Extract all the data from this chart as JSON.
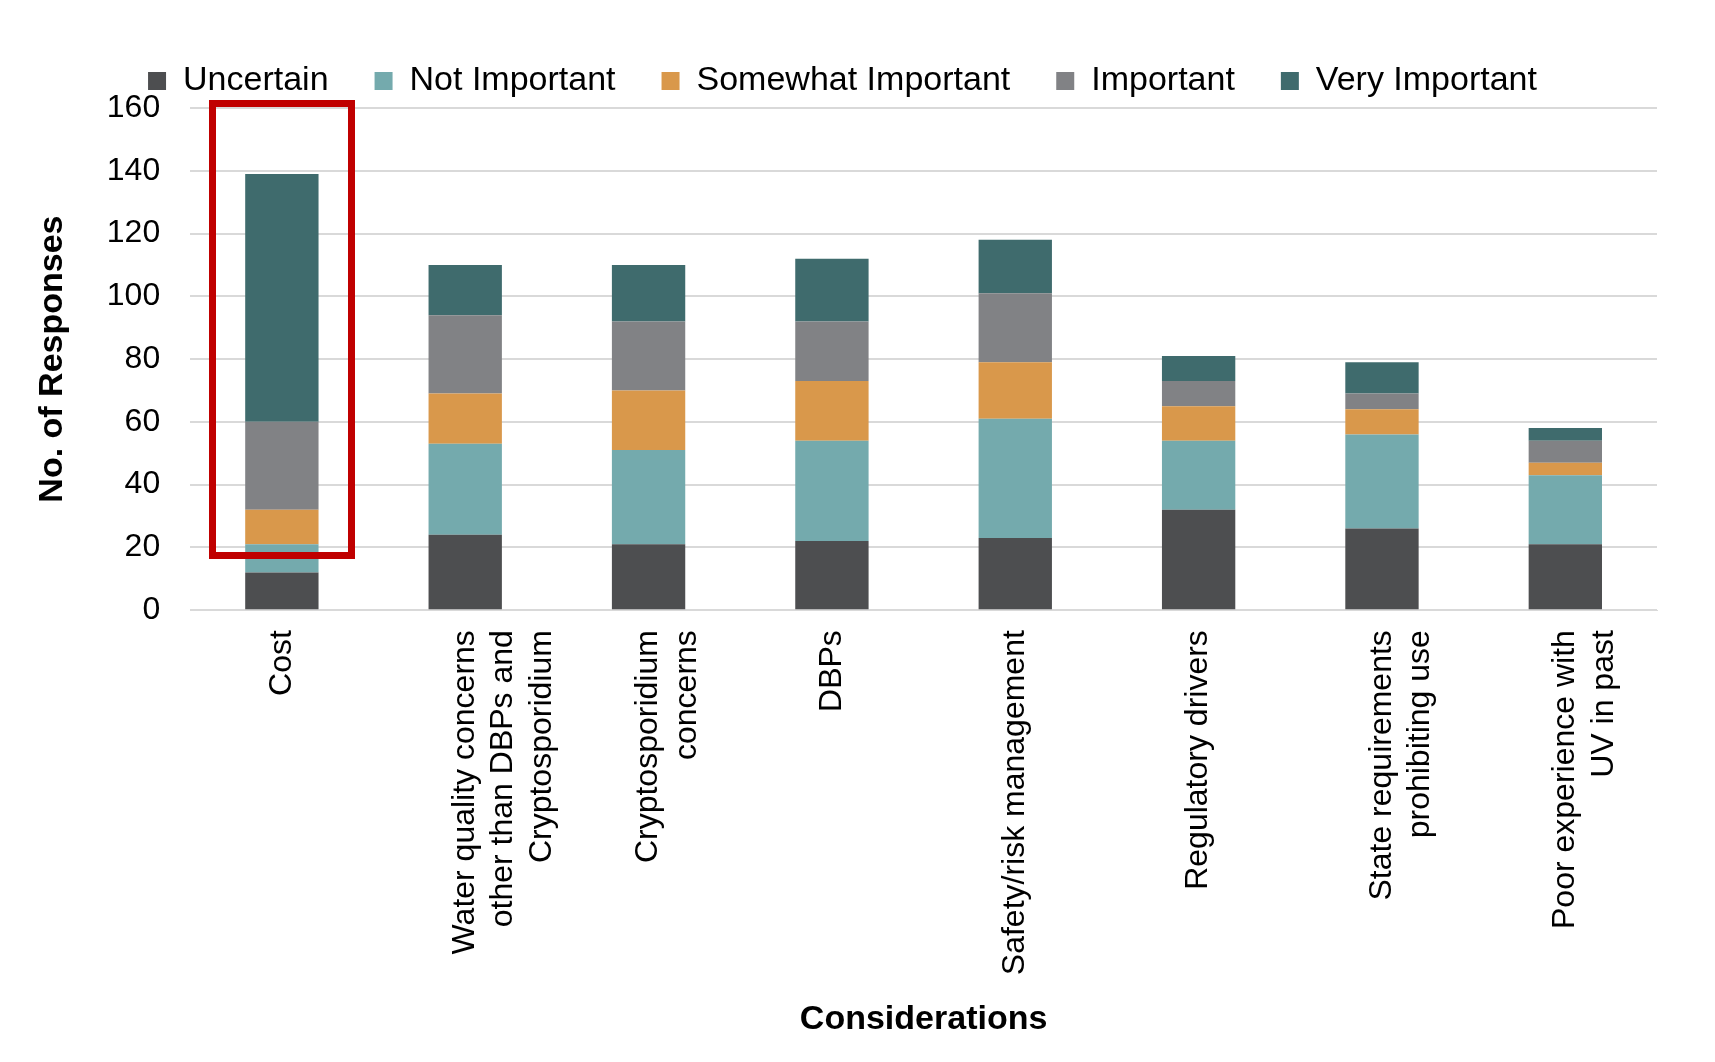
{
  "chart_data": {
    "type": "bar",
    "stacked": true,
    "xlabel": "Considerations",
    "ylabel": "No. of Responses",
    "categories": [
      "Cost",
      "Water quality concerns other than DBPs and Cryptosporidium",
      "Cryptosporidium concerns",
      "DBPs",
      "Safety/risk management",
      "Regulatory drivers",
      "State requirements prohibiting use",
      "Poor experience with UV in past"
    ],
    "series": [
      {
        "name": "Uncertain",
        "color": "#4d4e50",
        "values": [
          12,
          24,
          21,
          22,
          23,
          32,
          26,
          21
        ]
      },
      {
        "name": "Not Important",
        "color": "#74aaad",
        "values": [
          9,
          29,
          30,
          32,
          38,
          22,
          30,
          22
        ]
      },
      {
        "name": "Somewhat Important",
        "color": "#d9984b",
        "values": [
          11,
          16,
          19,
          19,
          18,
          11,
          8,
          4
        ]
      },
      {
        "name": "Important",
        "color": "#818285",
        "values": [
          28,
          25,
          22,
          19,
          22,
          8,
          5,
          7
        ]
      },
      {
        "name": "Very Important",
        "color": "#3f6b6d",
        "values": [
          79,
          16,
          18,
          20,
          17,
          8,
          10,
          4
        ]
      }
    ],
    "ylim": [
      0,
      160
    ],
    "yticks": [
      0,
      20,
      40,
      60,
      80,
      100,
      120,
      140,
      160
    ],
    "grid": "y",
    "legend": "top"
  }
}
